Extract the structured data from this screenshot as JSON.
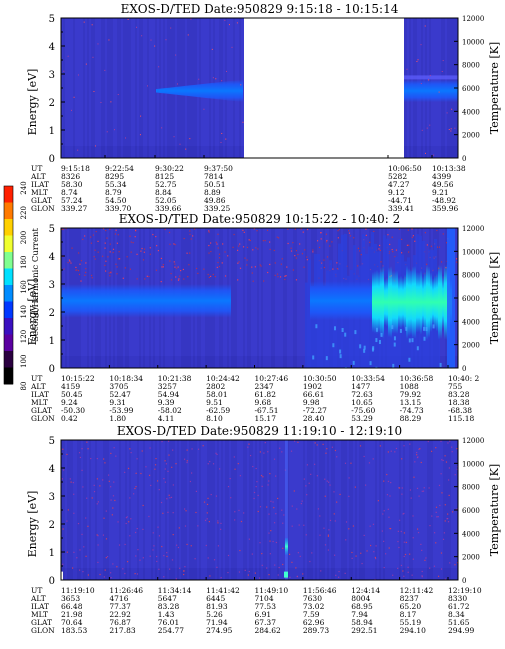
{
  "colorbar": {
    "label": "Second Harmonic Current",
    "ticks": [
      "240",
      "220",
      "200",
      "180",
      "160",
      "140",
      "120",
      "100",
      "80"
    ],
    "colors": [
      "#ff2000",
      "#ff7a00",
      "#ffd000",
      "#f0ff30",
      "#80ff90",
      "#00e0ff",
      "#008cff",
      "#0038ff",
      "#3a10c0",
      "#5a00a0",
      "#2a0040",
      "#000000"
    ]
  },
  "chart_data": [
    {
      "type": "heatmap",
      "title": "EXOS-D/TED   Date:950829  9:15:18 - 10:15:14",
      "ylabel": "Energy [eV]",
      "y2label": "Temperature [K]",
      "ylim": [
        0,
        5
      ],
      "y_ticks": [
        "0",
        "1",
        "2",
        "3",
        "4",
        "5"
      ],
      "y2lim": [
        0,
        12000
      ],
      "y2_ticks": [
        "0",
        "2000",
        "4000",
        "6000",
        "8000",
        "10000",
        "12000"
      ],
      "data_gap": {
        "from": "9:46",
        "to": "10:06"
      },
      "band": {
        "energy_center_eV": 2.4,
        "energy_halfwidth_eV": 0.4
      },
      "ephemeris": {
        "labels": [
          "UT",
          "ALT",
          "ILAT",
          "MLT",
          "GLAT",
          "GLON"
        ],
        "columns": [
          {
            "UT": "9:15:18",
            "ALT": "8326",
            "ILAT": "58.30",
            "MLT": "8.74",
            "GLAT": "57.24",
            "GLON": "339.27"
          },
          {
            "UT": "9:22:54",
            "ALT": "8295",
            "ILAT": "55.34",
            "MLT": "8.79",
            "GLAT": "54.50",
            "GLON": "339.70"
          },
          {
            "UT": "9:30:22",
            "ALT": "8125",
            "ILAT": "52.75",
            "MLT": "8.84",
            "GLAT": "52.05",
            "GLON": "339.66"
          },
          {
            "UT": "9:37:50",
            "ALT": "7814",
            "ILAT": "50.51",
            "MLT": "8.89",
            "GLAT": "49.86",
            "GLON": "339.25"
          },
          {
            "UT": "10:06:50",
            "ALT": "5282",
            "ILAT": "47.27",
            "MLT": "9.12",
            "GLAT": "-44.71",
            "GLON": "339.41"
          },
          {
            "UT": "10:13:38",
            "ALT": "4399",
            "ILAT": "49.56",
            "MLT": "9.21",
            "GLAT": "-48.92",
            "GLON": "359.96"
          }
        ]
      }
    },
    {
      "type": "heatmap",
      "title": "EXOS-D/TED   Date:950829  10:15:22 - 10:40: 2",
      "ylabel": "Energy [eV]",
      "y2label": "Temperature [K]",
      "ylim": [
        0,
        5
      ],
      "y_ticks": [
        "0",
        "1",
        "2",
        "3",
        "4",
        "5"
      ],
      "y2lim": [
        0,
        12000
      ],
      "y2_ticks": [
        "0",
        "2000",
        "4000",
        "6000",
        "8000",
        "10000",
        "12000"
      ],
      "ephemeris": {
        "labels": [
          "UT",
          "ALT",
          "ILAT",
          "MLT",
          "GLAT",
          "GLON"
        ],
        "columns": [
          {
            "UT": "10:15:22",
            "ALT": "4159",
            "ILAT": "50.45",
            "MLT": "9.24",
            "GLAT": "-50.30",
            "GLON": "0.42"
          },
          {
            "UT": "10:18:34",
            "ALT": "3705",
            "ILAT": "52.47",
            "MLT": "9.31",
            "GLAT": "-53.99",
            "GLON": "1.80"
          },
          {
            "UT": "10:21:38",
            "ALT": "3257",
            "ILAT": "54.94",
            "MLT": "9.39",
            "GLAT": "-58.02",
            "GLON": "4.11"
          },
          {
            "UT": "10:24:42",
            "ALT": "2802",
            "ILAT": "58.01",
            "MLT": "9.51",
            "GLAT": "-62.59",
            "GLON": "8.10"
          },
          {
            "UT": "10:27:46",
            "ALT": "2347",
            "ILAT": "61.82",
            "MLT": "9.68",
            "GLAT": "-67.51",
            "GLON": "15.17"
          },
          {
            "UT": "10:30:50",
            "ALT": "1902",
            "ILAT": "66.61",
            "MLT": "9.98",
            "GLAT": "-72.27",
            "GLON": "28.40"
          },
          {
            "UT": "10:33:54",
            "ALT": "1477",
            "ILAT": "72.63",
            "MLT": "10.65",
            "GLAT": "-75.60",
            "GLON": "53.29"
          },
          {
            "UT": "10:36:58",
            "ALT": "1088",
            "ILAT": "79.92",
            "MLT": "13.15",
            "GLAT": "-74.73",
            "GLON": "88.29"
          },
          {
            "UT": "10:40: 2",
            "ALT": "755",
            "ILAT": "83.28",
            "MLT": "18.38",
            "GLAT": "-68.38",
            "GLON": "115.18"
          }
        ]
      }
    },
    {
      "type": "heatmap",
      "title": "EXOS-D/TED   Date:950829  11:19:10 - 12:19:10",
      "ylabel": "Energy [eV]",
      "y2label": "Temperature [K]",
      "ylim": [
        0,
        5
      ],
      "y_ticks": [
        "0",
        "1",
        "2",
        "3",
        "4",
        "5"
      ],
      "y2lim": [
        0,
        12000
      ],
      "y2_ticks": [
        "0",
        "2000",
        "4000",
        "6000",
        "8000",
        "10000",
        "12000"
      ],
      "ephemeris": {
        "labels": [
          "UT",
          "ALT",
          "ILAT",
          "MLT",
          "GLAT",
          "GLON"
        ],
        "columns": [
          {
            "UT": "11:19:10",
            "ALT": "3653",
            "ILAT": "66.48",
            "MLT": "21.98",
            "GLAT": "70.64",
            "GLON": "183.53"
          },
          {
            "UT": "11:26:46",
            "ALT": "4716",
            "ILAT": "77.37",
            "MLT": "22.92",
            "GLAT": "76.87",
            "GLON": "217.83"
          },
          {
            "UT": "11:34:14",
            "ALT": "5647",
            "ILAT": "83.28",
            "MLT": "1.43",
            "GLAT": "76.01",
            "GLON": "254.77"
          },
          {
            "UT": "11:41:42",
            "ALT": "6445",
            "ILAT": "81.93",
            "MLT": "5.26",
            "GLAT": "71.94",
            "GLON": "274.95"
          },
          {
            "UT": "11:49:10",
            "ALT": "7104",
            "ILAT": "77.53",
            "MLT": "6.91",
            "GLAT": "67.37",
            "GLON": "284.62"
          },
          {
            "UT": "11:56:46",
            "ALT": "7630",
            "ILAT": "73.02",
            "MLT": "7.59",
            "GLAT": "62.96",
            "GLON": "289.73"
          },
          {
            "UT": "12:4:14",
            "ALT": "8004",
            "ILAT": "68.95",
            "MLT": "7.94",
            "GLAT": "58.94",
            "GLON": "292.51"
          },
          {
            "UT": "12:11:42",
            "ALT": "8237",
            "ILAT": "65.20",
            "MLT": "8.17",
            "GLAT": "55.19",
            "GLON": "294.10"
          },
          {
            "UT": "12:19:10",
            "ALT": "8330",
            "ILAT": "61.72",
            "MLT": "8.34",
            "GLAT": "51.65",
            "GLON": "294.99"
          }
        ]
      }
    }
  ]
}
